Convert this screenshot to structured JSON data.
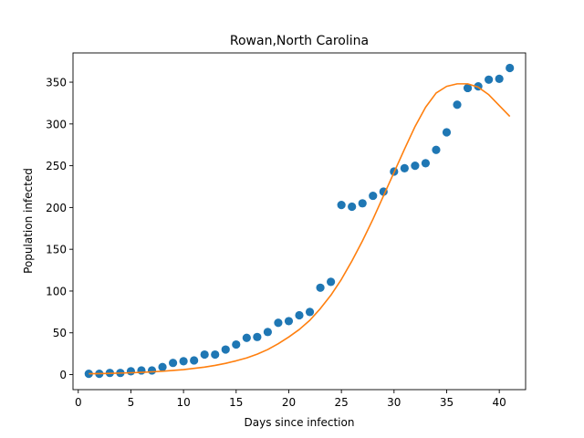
{
  "chart_data": {
    "type": "scatter",
    "title": "Rowan,North Carolina",
    "xlabel": "Days since infection",
    "ylabel": "Population infected",
    "xlim": [
      -0.5,
      42.5
    ],
    "ylim": [
      -18,
      385
    ],
    "xticks": [
      0,
      5,
      10,
      15,
      20,
      25,
      30,
      35,
      40
    ],
    "yticks": [
      0,
      50,
      100,
      150,
      200,
      250,
      300,
      350
    ],
    "grid": false,
    "legend": "none",
    "colors": {
      "points": "#1f77b4",
      "fit": "#ff7f0e"
    },
    "series": [
      {
        "kind": "scatter",
        "x": [
          1,
          2,
          3,
          4,
          5,
          6,
          7,
          8,
          9,
          10,
          11,
          12,
          13,
          14,
          15,
          16,
          17,
          18,
          19,
          20,
          21,
          22,
          23,
          24,
          25,
          26,
          27,
          28,
          29,
          30,
          31,
          32,
          33,
          34,
          35,
          36,
          37,
          38,
          39,
          40,
          41
        ],
        "y": [
          1,
          1,
          2,
          2,
          4,
          5,
          5,
          9,
          14,
          16,
          17,
          24,
          24,
          30,
          36,
          44,
          45,
          51,
          62,
          64,
          71,
          75,
          104,
          111,
          203,
          201,
          205,
          214,
          219,
          243,
          247,
          250,
          253,
          269,
          290,
          323,
          343,
          345,
          353,
          354,
          367
        ]
      },
      {
        "kind": "line",
        "x": [
          1,
          2,
          3,
          4,
          5,
          6,
          7,
          8,
          9,
          10,
          11,
          12,
          13,
          14,
          15,
          16,
          17,
          18,
          19,
          20,
          21,
          22,
          23,
          24,
          25,
          26,
          27,
          28,
          29,
          30,
          31,
          32,
          33,
          34,
          35,
          36,
          37,
          38,
          39,
          40,
          41
        ],
        "y": [
          1,
          1.2,
          1.5,
          1.8,
          2.2,
          2.7,
          3.3,
          4,
          5,
          6,
          7.5,
          9,
          11,
          13.5,
          16.5,
          20,
          24.5,
          30,
          37,
          45,
          54,
          65,
          79,
          95,
          114,
          136,
          160,
          186,
          214,
          242,
          270,
          297,
          320,
          337,
          345,
          348,
          348,
          344,
          335,
          322,
          309
        ]
      }
    ]
  }
}
